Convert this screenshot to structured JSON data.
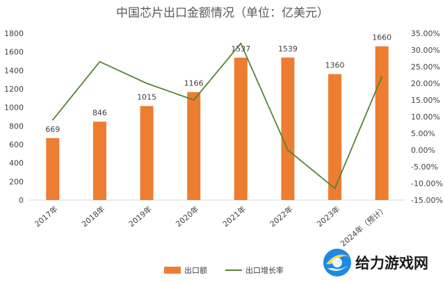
{
  "chart_data": {
    "type": "bar+line",
    "title": "中国芯片出口金额情况（单位：亿美元）",
    "categories": [
      "2017年",
      "2018年",
      "2019年",
      "2020年",
      "2021年",
      "2022年",
      "2023年",
      "2024年（预计）"
    ],
    "series": [
      {
        "name": "出口额",
        "type": "bar",
        "axis": "left",
        "color": "#ED7D31",
        "values": [
          669,
          846,
          1015,
          1166,
          1537,
          1539,
          1360,
          1660
        ]
      },
      {
        "name": "出口增长率",
        "type": "line",
        "axis": "right",
        "color": "#548235",
        "values": [
          9.0,
          26.5,
          20.0,
          15.0,
          32.0,
          0.0,
          -11.5,
          22.0
        ]
      }
    ],
    "y_left": {
      "min": 0,
      "max": 1800,
      "step": 200,
      "ticks": [
        "0",
        "200",
        "400",
        "600",
        "800",
        "1000",
        "1200",
        "1400",
        "1600",
        "1800"
      ]
    },
    "y_right": {
      "min": -15,
      "max": 35,
      "step": 5,
      "ticks": [
        "-15.00%",
        "-10.00%",
        "-5.00%",
        "0.00%",
        "5.00%",
        "10.00%",
        "15.00%",
        "20.00%",
        "25.00%",
        "30.00%",
        "35.00%"
      ]
    },
    "data_labels": [
      "669",
      "846",
      "1015",
      "1166",
      "1537",
      "1539",
      "1360",
      "1660"
    ],
    "legend": {
      "position": "bottom",
      "entries": [
        "出口额",
        "出口增长率"
      ]
    },
    "grid": false
  },
  "watermark": {
    "text": "给力游戏网",
    "logo": "game-site-logo-icon"
  }
}
